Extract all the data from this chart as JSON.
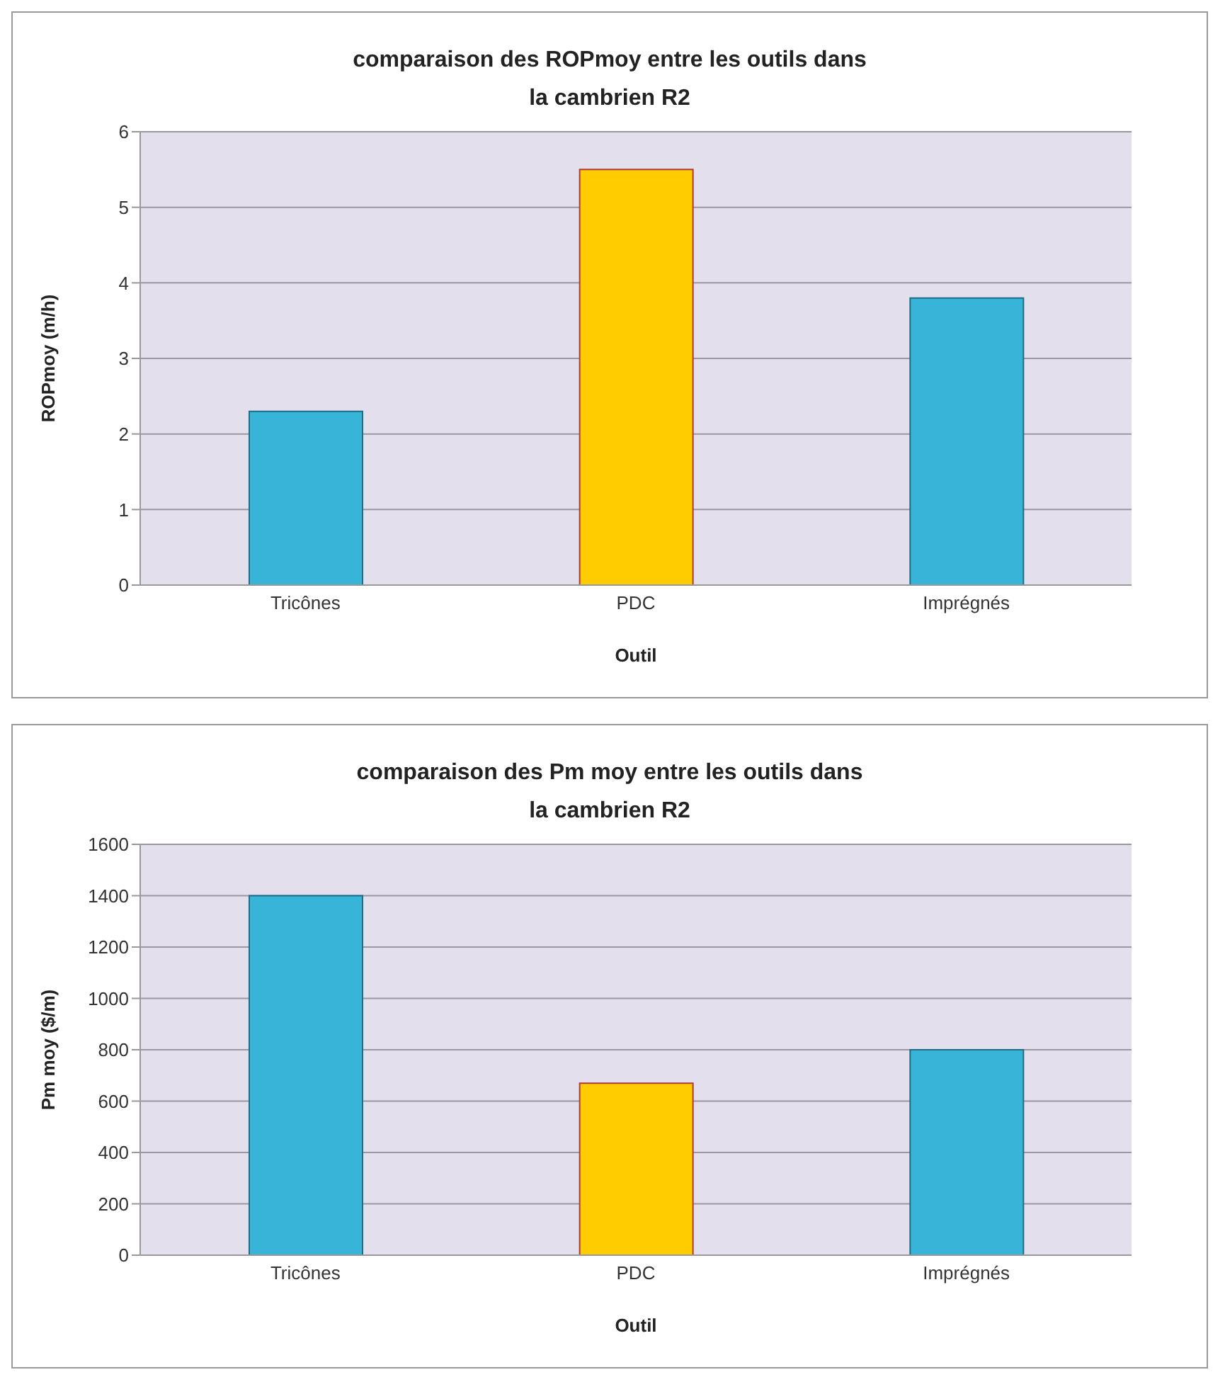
{
  "chart_data": [
    {
      "type": "bar",
      "title": "comparaison  des ROPmoy entre les outils dans\nla cambrien R2",
      "xlabel": "Outil",
      "ylabel": "ROPmoy (m/h)",
      "categories": [
        "Tricônes",
        "PDC",
        "Imprégnés"
      ],
      "values": [
        2.3,
        5.5,
        3.8
      ],
      "colors": [
        "#37b4d8",
        "#ffcc00",
        "#37b4d8"
      ],
      "ylim": [
        0,
        6
      ],
      "yticks": [
        0,
        1,
        2,
        3,
        4,
        5,
        6
      ],
      "grid": "y",
      "legend": false
    },
    {
      "type": "bar",
      "title": "comparaison des Pm moy entre les outils dans\nla cambrien R2",
      "xlabel": "Outil",
      "ylabel": "Pm moy ($/m)",
      "categories": [
        "Tricônes",
        "PDC",
        "Imprégnés"
      ],
      "values": [
        1400,
        670,
        800
      ],
      "colors": [
        "#37b4d8",
        "#ffcc00",
        "#37b4d8"
      ],
      "ylim": [
        0,
        1600
      ],
      "yticks": [
        0,
        200,
        400,
        600,
        800,
        1000,
        1200,
        1400,
        1600
      ],
      "grid": "y",
      "legend": false
    }
  ]
}
